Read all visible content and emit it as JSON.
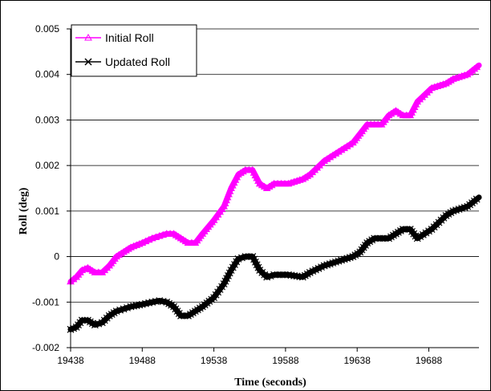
{
  "chart_data": {
    "type": "line",
    "title": "",
    "xlabel": "Time (seconds)",
    "ylabel": "Roll (deg)",
    "xlim": [
      19438,
      19723
    ],
    "ylim": [
      -0.002,
      0.005
    ],
    "x_ticks": [
      "19438",
      "19488",
      "19538",
      "19588",
      "19638",
      "19688"
    ],
    "y_ticks": [
      "0.005",
      "0.004",
      "0.003",
      "0.002",
      "0.001",
      "0",
      "-0.001",
      "-0.002"
    ],
    "grid": "horizontal",
    "legend_position": "top-left",
    "series": [
      {
        "name": "Initial Roll",
        "color": "#ff00ff",
        "marker": "triangle",
        "x": [
          19438,
          19442,
          19446,
          19450,
          19455,
          19460,
          19465,
          19470,
          19475,
          19480,
          19488,
          19495,
          19500,
          19505,
          19510,
          19515,
          19520,
          19525,
          19530,
          19538,
          19545,
          19550,
          19555,
          19560,
          19565,
          19570,
          19575,
          19580,
          19590,
          19600,
          19605,
          19615,
          19625,
          19635,
          19640,
          19645,
          19650,
          19655,
          19660,
          19665,
          19670,
          19675,
          19680,
          19690,
          19700,
          19705,
          19715,
          19723
        ],
        "y": [
          -0.00055,
          -0.00045,
          -0.0003,
          -0.00025,
          -0.00035,
          -0.00035,
          -0.0002,
          0.0,
          0.0001,
          0.0002,
          0.0003,
          0.0004,
          0.00045,
          0.0005,
          0.0005,
          0.0004,
          0.0003,
          0.0003,
          0.0005,
          0.0008,
          0.0011,
          0.0015,
          0.0018,
          0.0019,
          0.0019,
          0.0016,
          0.0015,
          0.0016,
          0.0016,
          0.0017,
          0.0018,
          0.0021,
          0.0023,
          0.0025,
          0.0027,
          0.0029,
          0.0029,
          0.0029,
          0.0031,
          0.0032,
          0.0031,
          0.0031,
          0.0034,
          0.0037,
          0.0038,
          0.0039,
          0.004,
          0.0042
        ]
      },
      {
        "name": "Updated Roll",
        "color": "#000000",
        "marker": "x",
        "x": [
          19438,
          19442,
          19446,
          19450,
          19455,
          19460,
          19465,
          19470,
          19475,
          19480,
          19488,
          19495,
          19500,
          19505,
          19510,
          19515,
          19520,
          19525,
          19530,
          19538,
          19545,
          19550,
          19555,
          19560,
          19565,
          19570,
          19575,
          19580,
          19590,
          19600,
          19605,
          19615,
          19625,
          19635,
          19640,
          19645,
          19650,
          19655,
          19660,
          19665,
          19670,
          19675,
          19680,
          19690,
          19700,
          19705,
          19715,
          19723
        ],
        "y": [
          -0.0016,
          -0.00155,
          -0.0014,
          -0.0014,
          -0.0015,
          -0.00145,
          -0.0013,
          -0.0012,
          -0.00115,
          -0.0011,
          -0.00105,
          -0.001,
          -0.00097,
          -0.001,
          -0.0011,
          -0.0013,
          -0.0013,
          -0.0012,
          -0.0011,
          -0.0009,
          -0.0006,
          -0.0003,
          -5e-05,
          0.0,
          0.0,
          -0.0003,
          -0.00045,
          -0.0004,
          -0.0004,
          -0.00045,
          -0.00035,
          -0.0002,
          -0.0001,
          0.0,
          0.0001,
          0.0003,
          0.0004,
          0.0004,
          0.0004,
          0.0005,
          0.0006,
          0.0006,
          0.0004,
          0.0006,
          0.0009,
          0.001,
          0.0011,
          0.0013
        ]
      }
    ]
  }
}
